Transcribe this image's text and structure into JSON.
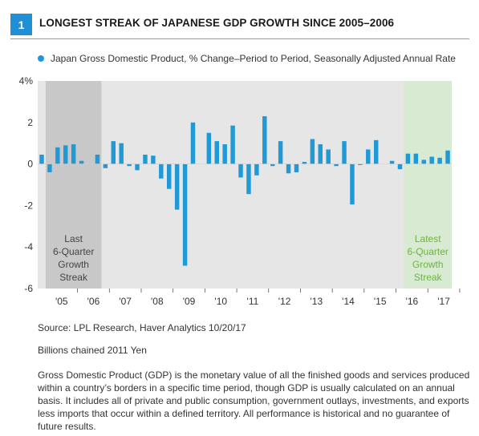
{
  "header": {
    "figure_number": "1",
    "title": "LONGEST STREAK OF JAPANESE GDP GROWTH SINCE 2005–2006"
  },
  "legend": {
    "label": "Japan Gross Domestic Product, % Change–Period to Period, Seasonally Adjusted Annual Rate"
  },
  "colors": {
    "accent": "#1f8fd6",
    "bars": "#1f9ad6",
    "plot_background": "#e6e6e6",
    "highlight_last_streak": "#c8c8c8",
    "highlight_latest_streak": "#d9ead2",
    "latest_streak_text": "#6cb33f"
  },
  "chart_data": {
    "type": "bar",
    "ylim": [
      -6,
      4
    ],
    "y_ticks": [
      "4%",
      "2",
      "0",
      "-2",
      "-4",
      "-6"
    ],
    "x_tick_labels": [
      "'05",
      "'06",
      "'07",
      "'08",
      "'09",
      "'10",
      "'11",
      "'12",
      "'13",
      "'14",
      "'15",
      "'16",
      "'17"
    ],
    "grid": false,
    "legend_position": "top-left",
    "series": [
      {
        "name": "Japan Gross Domestic Product, % Change–Period to Period, Seasonally Adjusted Annual Rate",
        "values": [
          0.45,
          -0.4,
          0.8,
          0.9,
          0.95,
          0.15,
          0.0,
          0.45,
          -0.2,
          1.1,
          1.0,
          -0.1,
          -0.3,
          0.45,
          0.4,
          -0.7,
          -1.2,
          -2.2,
          -4.9,
          2.0,
          0.0,
          1.5,
          1.1,
          0.95,
          1.85,
          -0.65,
          -1.45,
          -0.55,
          2.3,
          -0.1,
          1.1,
          -0.45,
          -0.4,
          0.1,
          1.2,
          0.95,
          0.7,
          -0.1,
          1.1,
          -1.95,
          -0.05,
          0.7,
          1.15,
          0.0,
          0.15,
          -0.25,
          0.5,
          0.5,
          0.2,
          0.35,
          0.3,
          0.65
        ]
      }
    ],
    "shaded_regions": [
      {
        "label": "Last 6-Quarter Growth Streak",
        "start_index": 1,
        "end_index": 7
      },
      {
        "label": "Latest 6-Quarter Growth Streak",
        "start_index": 46,
        "end_index": 51
      }
    ],
    "annotations": {
      "last_streak": [
        "Last",
        "6-Quarter",
        "Growth",
        "Streak"
      ],
      "latest_streak": [
        "Latest",
        "6-Quarter",
        "Growth",
        "Streak"
      ]
    }
  },
  "notes": {
    "source": "Source: LPL Research, Haver Analytics   10/20/17",
    "units": "Billions chained 2011 Yen",
    "description": "Gross Domestic Product (GDP) is the monetary value of all the finished goods and services produced within a country’s borders in a specific time period, though GDP is usually calculated on an annual basis. It includes all of private and public consumption, government outlays, investments, and exports less imports that occur within a defined territory. All performance is historical and no guarantee of future results."
  }
}
